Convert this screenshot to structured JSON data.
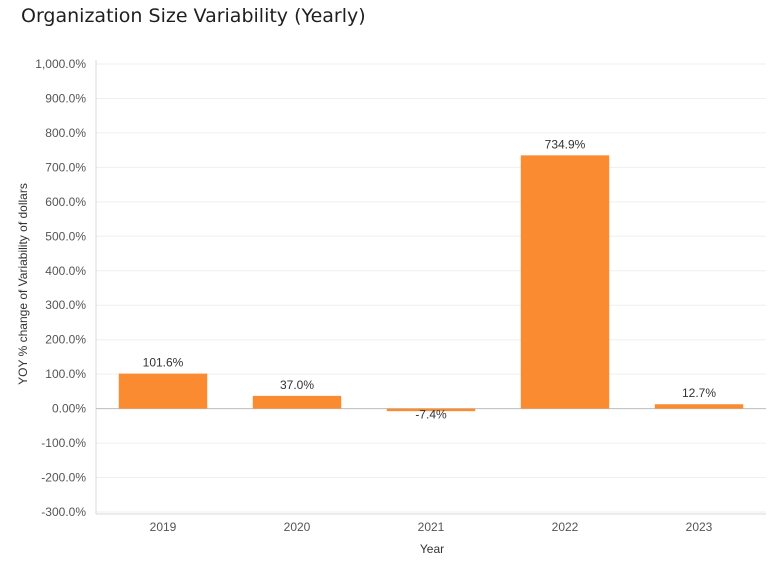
{
  "title": "Organization Size Variability (Yearly)",
  "chart_data": {
    "type": "bar",
    "categories": [
      "2019",
      "2020",
      "2021",
      "2022",
      "2023"
    ],
    "values": [
      101.6,
      37.0,
      -7.4,
      734.9,
      12.7
    ],
    "data_labels": [
      "101.6%",
      "37.0%",
      "-7.4%",
      "734.9%",
      "12.7%"
    ],
    "xlabel": "Year",
    "ylabel": "YOY % change of Variability of dollars",
    "ylim": [
      -300,
      1000
    ],
    "yticks": [
      1000,
      900,
      800,
      700,
      600,
      500,
      400,
      300,
      200,
      100,
      0,
      -100,
      -200,
      -300
    ],
    "ytick_labels": [
      "1,000.0%",
      "900.0%",
      "800.0%",
      "700.0%",
      "600.0%",
      "500.0%",
      "400.0%",
      "300.0%",
      "200.0%",
      "100.0%",
      "0.00%",
      "-100.0%",
      "-200.0%",
      "-300.0%"
    ],
    "bar_color": "#fb8b30",
    "grid": true,
    "legend": "none"
  }
}
